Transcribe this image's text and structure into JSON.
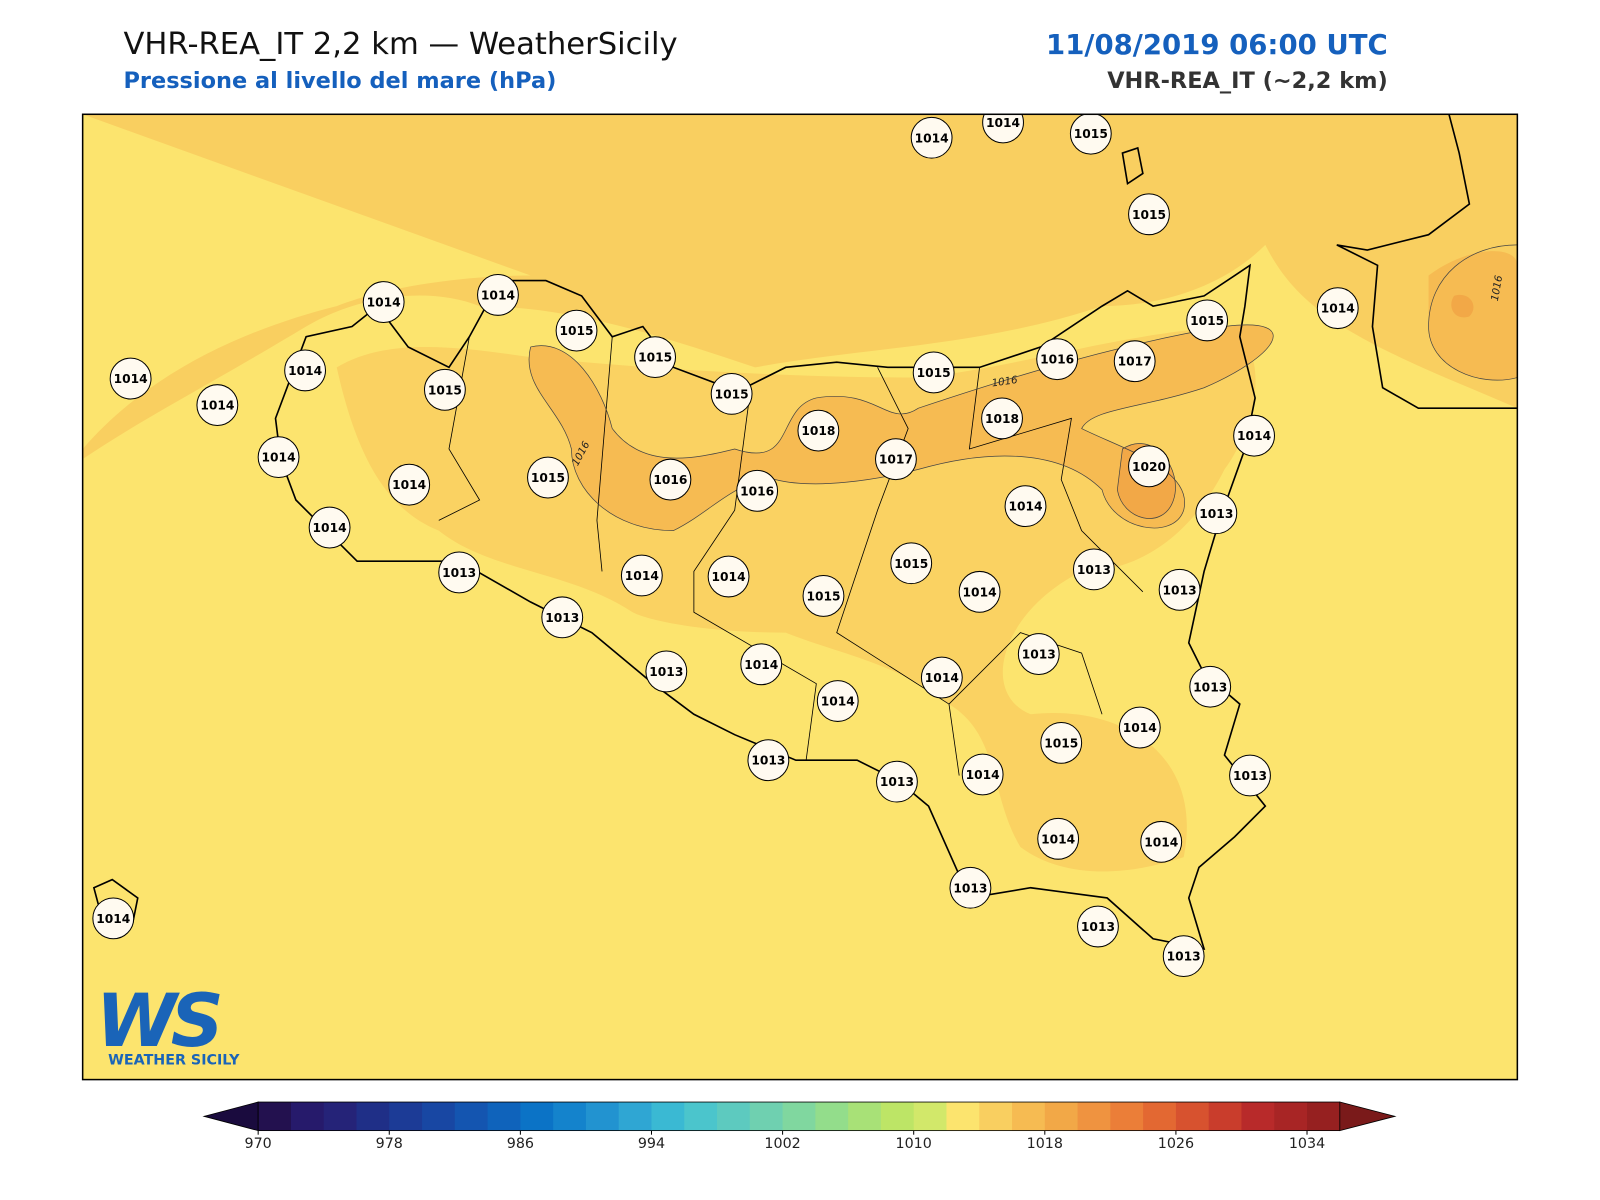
{
  "header": {
    "title": "VHR-REA_IT 2,2 km — WeatherSicily",
    "subtitle": "Pressione al livello del mare (hPa)",
    "datetime": "11/08/2019 06:00 UTC",
    "model": "VHR-REA_IT (~2,2 km)"
  },
  "stations": [
    1014,
    1014,
    1015,
    1015,
    1014,
    1014,
    1015,
    1015,
    1014,
    1014,
    1014,
    1015,
    1015,
    1015,
    1015,
    1016,
    1017,
    1014,
    1018,
    1018,
    1014,
    1014,
    1017,
    1020,
    1014,
    1015,
    1016,
    1016,
    1014,
    1013,
    1014,
    1015,
    1013,
    1013,
    1014,
    1014,
    1014,
    1013,
    1015,
    1013,
    1013,
    1013,
    1014,
    1014,
    1013,
    1014,
    1015,
    1014,
    1013,
    1013,
    1014,
    1013,
    1014,
    1014,
    1013,
    1013,
    1013,
    1014
  ],
  "contour_labels": [
    1016,
    1016,
    1016
  ],
  "colorbar": {
    "bounds": [
      970,
      972,
      974,
      976,
      978,
      980,
      982,
      984,
      986,
      988,
      990,
      992,
      994,
      996,
      998,
      1000,
      1002,
      1004,
      1006,
      1008,
      1010,
      1012,
      1014,
      1016,
      1018,
      1020,
      1022,
      1024,
      1026,
      1028,
      1030,
      1032,
      1034,
      1036
    ],
    "colors": [
      "#23114f",
      "#261a6b",
      "#252378",
      "#1f2f87",
      "#1c3b96",
      "#1847a3",
      "#1455b0",
      "#0f63bb",
      "#0b73c6",
      "#1483cc",
      "#2293d0",
      "#2fa6d3",
      "#3ab9d3",
      "#4bc5cc",
      "#5dcabf",
      "#6fd0b0",
      "#80d79f",
      "#93dd8b",
      "#a8e177",
      "#bde566",
      "#d2e86a",
      "#fce46e",
      "#f9cf60",
      "#f6bb52",
      "#f2a847",
      "#ef9340",
      "#eb7e38",
      "#e36832",
      "#d7522f",
      "#c93d2c",
      "#b82a2a",
      "#a82525",
      "#962020"
    ],
    "under_color": "#1a0b3e",
    "over_color": "#7a1a1a",
    "ticks": [
      970,
      978,
      986,
      994,
      1002,
      1010,
      1018,
      1026,
      1034
    ]
  },
  "logo": {
    "mark": "WS",
    "text": "WEATHER SICILY"
  }
}
